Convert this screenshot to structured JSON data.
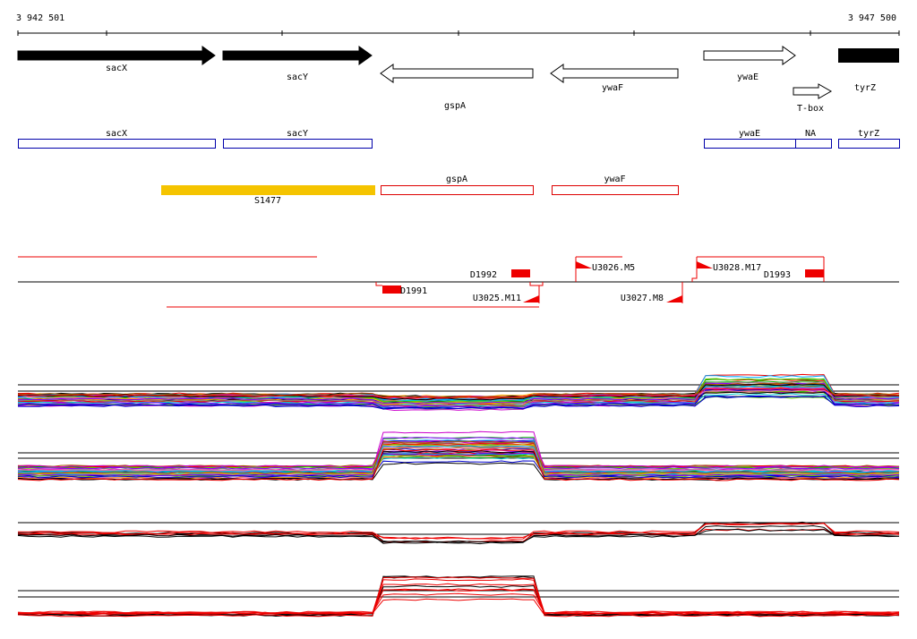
{
  "ruler": {
    "start": "3 942 501",
    "end": "3 947 500"
  },
  "genes": [
    {
      "label": "sacX"
    },
    {
      "label": "sacY"
    },
    {
      "label": "gspA"
    },
    {
      "label": "ywaF"
    },
    {
      "label": "ywaE"
    },
    {
      "label": "tyrZ"
    },
    {
      "label": "T-box"
    }
  ],
  "annotations": [
    {
      "label": "sacX"
    },
    {
      "label": "sacY"
    },
    {
      "label": "ywaE"
    },
    {
      "label": "NA"
    },
    {
      "label": "tyrZ"
    },
    {
      "label": "gspA"
    },
    {
      "label": "ywaF"
    },
    {
      "label": "S1477"
    }
  ],
  "features": [
    {
      "label": "D1992"
    },
    {
      "label": "U3026.M5"
    },
    {
      "label": "U3028.M17"
    },
    {
      "label": "D1993"
    },
    {
      "label": "D1991"
    },
    {
      "label": "U3025.M11"
    },
    {
      "label": "U3027.M8"
    }
  ]
}
